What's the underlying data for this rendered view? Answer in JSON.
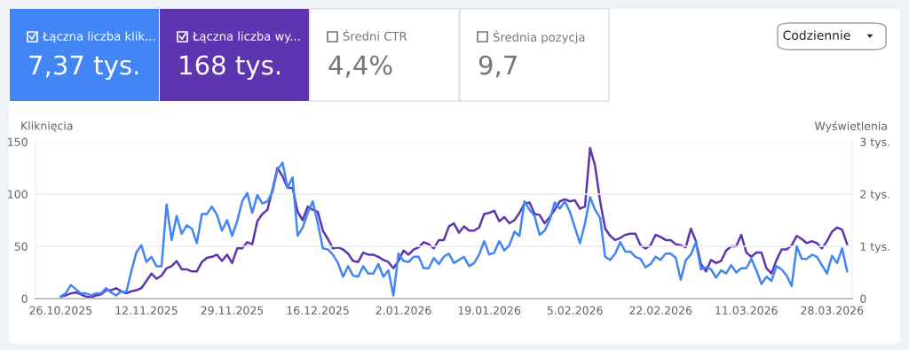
{
  "chart_data": {
    "type": "line",
    "annotations": [
      "Łączna liczba klik...",
      "7,37 tys.",
      "Łączna liczba wy...",
      "168 tys.",
      "Średni CTR",
      "4,4%",
      "Średnia pozycja",
      "9,7",
      "Codziennie"
    ],
    "ylabel": "Kliknięcia",
    "y2label": "Wyświetlenia",
    "x": [
      "2025-10-26",
      "2025-10-27",
      "2025-10-28",
      "2025-10-29",
      "2025-10-30",
      "2025-10-31",
      "2025-11-01",
      "2025-11-02",
      "2025-11-03",
      "2025-11-04",
      "2025-11-05",
      "2025-11-06",
      "2025-11-07",
      "2025-11-08",
      "2025-11-09",
      "2025-11-10",
      "2025-11-11",
      "2025-11-12",
      "2025-11-13",
      "2025-11-14",
      "2025-11-15",
      "2025-11-16",
      "2025-11-17",
      "2025-11-18",
      "2025-11-19",
      "2025-11-20",
      "2025-11-21",
      "2025-11-22",
      "2025-11-23",
      "2025-11-24",
      "2025-11-25",
      "2025-11-26",
      "2025-11-27",
      "2025-11-28",
      "2025-11-29",
      "2025-11-30",
      "2025-12-01",
      "2025-12-02",
      "2025-12-03",
      "2025-12-04",
      "2025-12-05",
      "2025-12-06",
      "2025-12-07",
      "2025-12-08",
      "2025-12-09",
      "2025-12-10",
      "2025-12-11",
      "2025-12-12",
      "2025-12-13",
      "2025-12-14",
      "2025-12-15",
      "2025-12-16",
      "2025-12-17",
      "2025-12-18",
      "2025-12-19",
      "2025-12-20",
      "2025-12-21",
      "2025-12-22",
      "2025-12-23",
      "2025-12-24",
      "2025-12-25",
      "2025-12-26",
      "2025-12-27",
      "2025-12-28",
      "2025-12-29",
      "2025-12-30",
      "2025-12-31",
      "2026-01-01",
      "2026-01-02",
      "2026-01-03",
      "2026-01-04",
      "2026-01-05",
      "2026-01-06",
      "2026-01-07",
      "2026-01-08",
      "2026-01-09",
      "2026-01-10",
      "2026-01-11",
      "2026-01-12",
      "2026-01-13",
      "2026-01-14",
      "2026-01-15",
      "2026-01-16",
      "2026-01-17",
      "2026-01-18",
      "2026-01-19",
      "2026-01-20",
      "2026-01-21",
      "2026-01-22",
      "2026-01-23",
      "2026-01-24",
      "2026-01-25",
      "2026-01-26",
      "2026-01-27",
      "2026-01-28",
      "2026-01-29",
      "2026-01-30",
      "2026-01-31",
      "2026-02-01",
      "2026-02-02",
      "2026-02-03",
      "2026-02-04",
      "2026-02-05",
      "2026-02-06",
      "2026-02-07",
      "2026-02-08",
      "2026-02-09",
      "2026-02-10",
      "2026-02-11",
      "2026-02-12",
      "2026-02-13",
      "2026-02-14",
      "2026-02-15",
      "2026-02-16",
      "2026-02-17",
      "2026-02-18",
      "2026-02-19",
      "2026-02-20",
      "2026-02-21",
      "2026-02-22",
      "2026-02-23",
      "2026-02-24",
      "2026-02-25",
      "2026-02-26",
      "2026-02-27",
      "2026-02-28",
      "2026-03-01",
      "2026-03-02",
      "2026-03-03",
      "2026-03-04",
      "2026-03-05",
      "2026-03-06",
      "2026-03-07",
      "2026-03-08",
      "2026-03-09",
      "2026-03-10",
      "2026-03-11",
      "2026-03-12",
      "2026-03-13",
      "2026-03-14",
      "2026-03-15",
      "2026-03-16",
      "2026-03-17",
      "2026-03-18",
      "2026-03-19",
      "2026-03-20",
      "2026-03-21",
      "2026-03-22",
      "2026-03-23",
      "2026-03-24",
      "2026-03-25",
      "2026-03-26",
      "2026-03-27",
      "2026-03-28",
      "2026-03-29",
      "2026-03-30",
      "2026-03-31"
    ],
    "series": [
      {
        "color": "#4285f4",
        "values": [
          2,
          5,
          13,
          9,
          5,
          5,
          3,
          5,
          5,
          10,
          6,
          3,
          7,
          6,
          26,
          44,
          51,
          35,
          40,
          31,
          31,
          90,
          56,
          79,
          62,
          70,
          67,
          53,
          81,
          81,
          88,
          80,
          65,
          75,
          60,
          74,
          93,
          101,
          82,
          99,
          91,
          93,
          102,
          123,
          130,
          106,
          116,
          60,
          68,
          82,
          93,
          72,
          48,
          47,
          42,
          34,
          21,
          31,
          22,
          21,
          31,
          24,
          24,
          33,
          21,
          27,
          3,
          43,
          36,
          35,
          40,
          40,
          29,
          29,
          39,
          33,
          40,
          43,
          34,
          37,
          40,
          31,
          34,
          42,
          55,
          42,
          44,
          55,
          46,
          51,
          64,
          60,
          93,
          85,
          79,
          61,
          65,
          75,
          92,
          86,
          93,
          83,
          68,
          53,
          72,
          97,
          85,
          77,
          40,
          37,
          43,
          54,
          45,
          45,
          40,
          38,
          30,
          33,
          40,
          37,
          43,
          43,
          39,
          18,
          37,
          42,
          54,
          28,
          30,
          28,
          20,
          27,
          24,
          32,
          25,
          29,
          29,
          38,
          27,
          14,
          21,
          17,
          31,
          28,
          22,
          12,
          50,
          38,
          38,
          42,
          40,
          32,
          24,
          41,
          34,
          48,
          26
        ]
      },
      {
        "color": "#5e35b1",
        "axis": "y2",
        "values": [
          0.04,
          0.06,
          0.1,
          0.12,
          0.08,
          0.04,
          0.02,
          0.06,
          0.08,
          0.16,
          0.16,
          0.2,
          0.14,
          0.1,
          0.14,
          0.16,
          0.2,
          0.34,
          0.48,
          0.38,
          0.44,
          0.58,
          0.62,
          0.72,
          0.56,
          0.56,
          0.52,
          0.52,
          0.7,
          0.78,
          0.8,
          0.84,
          0.72,
          0.84,
          0.68,
          0.96,
          0.96,
          1.08,
          1.04,
          1.48,
          1.62,
          1.7,
          2.08,
          2.5,
          2.34,
          2.12,
          2.12,
          1.66,
          1.5,
          1.76,
          1.7,
          1.66,
          1.3,
          1.14,
          0.96,
          0.98,
          0.94,
          0.86,
          0.72,
          0.7,
          0.88,
          0.84,
          0.84,
          0.8,
          0.74,
          0.7,
          0.58,
          0.72,
          0.92,
          0.84,
          0.94,
          0.98,
          1.08,
          1.04,
          0.96,
          1.12,
          1.12,
          1.38,
          1.44,
          1.26,
          1.38,
          1.3,
          1.3,
          1.36,
          1.62,
          1.64,
          1.68,
          1.48,
          1.56,
          1.44,
          1.5,
          1.64,
          1.82,
          1.84,
          1.62,
          1.6,
          1.44,
          1.56,
          1.7,
          1.86,
          1.9,
          1.86,
          1.88,
          1.72,
          1.76,
          2.88,
          2.54,
          1.86,
          1.34,
          1.2,
          1.12,
          1.16,
          1.22,
          1.24,
          1.24,
          1.02,
          0.96,
          1.02,
          1.22,
          1.18,
          1.12,
          1.12,
          1.04,
          1.02,
          0.98,
          1.34,
          1.1,
          0.66,
          0.52,
          0.74,
          0.68,
          0.72,
          0.92,
          1.0,
          1.0,
          1.22,
          0.88,
          0.8,
          0.88,
          0.88,
          0.58,
          0.48,
          0.74,
          0.94,
          0.94,
          1.02,
          1.2,
          1.14,
          1.06,
          1.1,
          1.06,
          0.96,
          1.1,
          1.28,
          1.36,
          1.32,
          1.04
        ]
      }
    ],
    "xlim": [
      "2025-10-21",
      "2026-04-01"
    ],
    "xticks": [
      {
        "value": "2025-10-26",
        "label": "26.10.2025"
      },
      {
        "value": "2025-11-12",
        "label": "12.11.2025"
      },
      {
        "value": "2025-11-29",
        "label": "29.11.2025"
      },
      {
        "value": "2025-12-16",
        "label": "16.12.2025"
      },
      {
        "value": "2026-01-02",
        "label": "2.01.2026"
      },
      {
        "value": "2026-01-19",
        "label": "19.01.2026"
      },
      {
        "value": "2026-02-05",
        "label": "5.02.2026"
      },
      {
        "value": "2026-02-22",
        "label": "22.02.2026"
      },
      {
        "value": "2026-03-11",
        "label": "11.03.2026"
      },
      {
        "value": "2026-03-28",
        "label": "28.03.2026"
      }
    ],
    "ylim": [
      0,
      150
    ],
    "yticks": [
      0,
      50,
      100,
      150
    ],
    "y2lim": [
      0,
      3
    ],
    "y2ticks": [
      0,
      {
        "value": 1,
        "label": "1 tys."
      },
      {
        "value": 2,
        "label": "2 tys."
      },
      {
        "value": 3,
        "label": "3 tys."
      }
    ],
    "grid": "y",
    "marker": "none",
    "line_style": "solid"
  }
}
